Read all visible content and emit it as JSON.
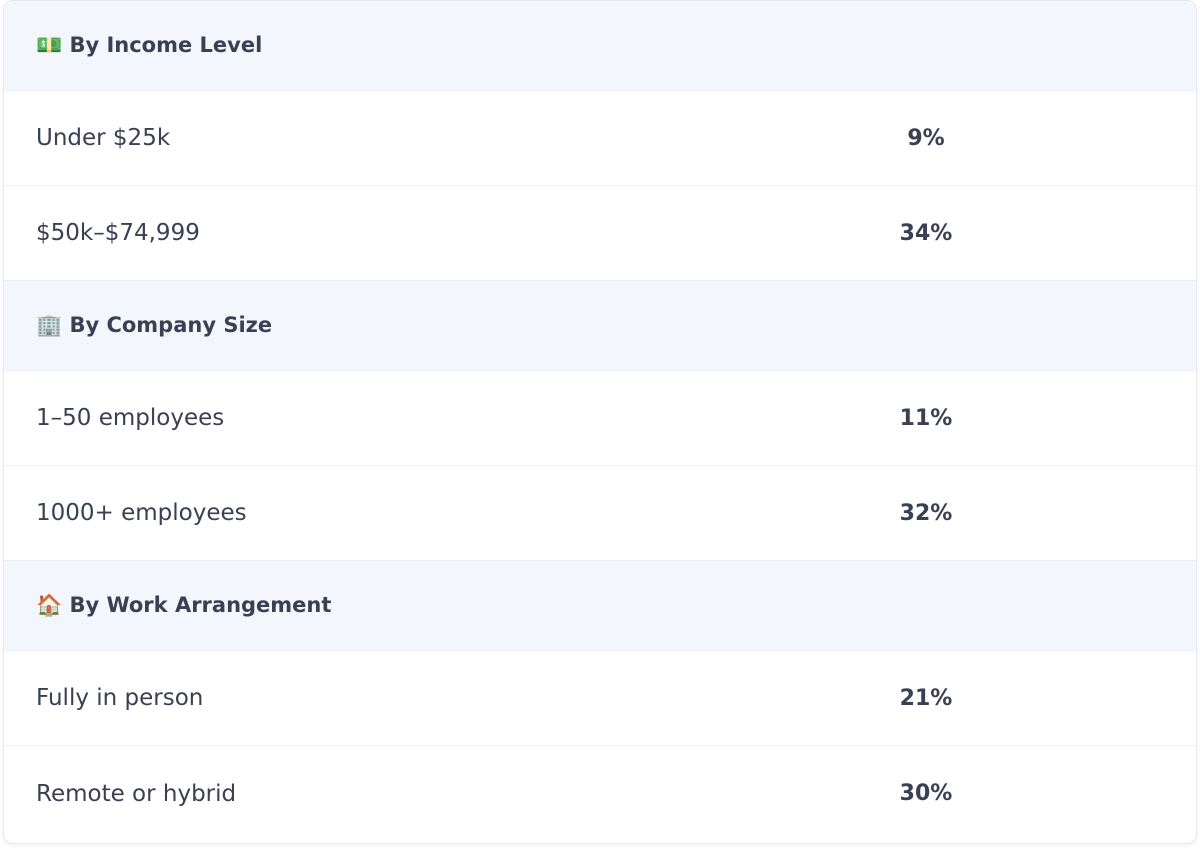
{
  "sections": [
    {
      "title": "💵 By Income Level",
      "rows": [
        {
          "label": "Under $25k",
          "value": "9%"
        },
        {
          "label": "$50k–$74,999",
          "value": "34%"
        }
      ]
    },
    {
      "title": "🏢 By Company Size",
      "rows": [
        {
          "label": "1–50 employees",
          "value": "11%"
        },
        {
          "label": "1000+ employees",
          "value": "32%"
        }
      ]
    },
    {
      "title": "🏠 By Work Arrangement",
      "rows": [
        {
          "label": "Fully in person",
          "value": "21%"
        },
        {
          "label": "Remote or hybrid",
          "value": "30%"
        }
      ]
    }
  ]
}
